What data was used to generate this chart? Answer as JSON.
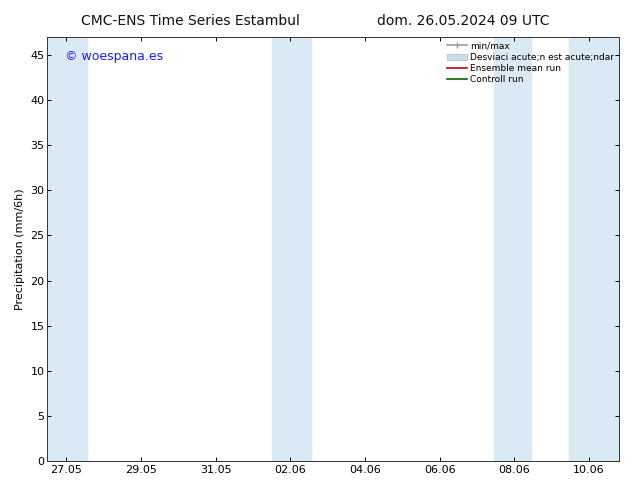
{
  "title_left": "CMC-ENS Time Series Estambul",
  "title_right": "dom. 26.05.2024 09 UTC",
  "ylabel": "Precipitation (mm/6h)",
  "ylim": [
    0,
    47
  ],
  "yticks": [
    0,
    5,
    10,
    15,
    20,
    25,
    30,
    35,
    40,
    45
  ],
  "xtick_labels": [
    "27.05",
    "29.05",
    "31.05",
    "02.06",
    "04.06",
    "06.06",
    "08.06",
    "10.06"
  ],
  "xtick_positions": [
    0,
    2,
    4,
    6,
    8,
    10,
    12,
    14
  ],
  "xlim": [
    -0.5,
    14.8
  ],
  "bg_color": "#ffffff",
  "plot_bg_color": "#ffffff",
  "shaded_color": "#daeaf5",
  "shaded_bands": [
    {
      "x_start": -0.5,
      "x_end": 0.55
    },
    {
      "x_start": 5.5,
      "x_end": 6.55
    },
    {
      "x_start": 11.45,
      "x_end": 12.45
    },
    {
      "x_start": 13.45,
      "x_end": 14.8
    }
  ],
  "watermark_text": "© woespana.es",
  "watermark_color": "#1a1aff",
  "legend_labels": [
    "min/max",
    "Desviaci acute;n est acute;ndar",
    "Ensemble mean run",
    "Controll run"
  ],
  "legend_colors_line": [
    "#999999",
    "#bbccdd",
    "#cc0000",
    "#006600"
  ],
  "title_fontsize": 10,
  "axis_fontsize": 8,
  "tick_fontsize": 8,
  "watermark_fontsize": 9
}
